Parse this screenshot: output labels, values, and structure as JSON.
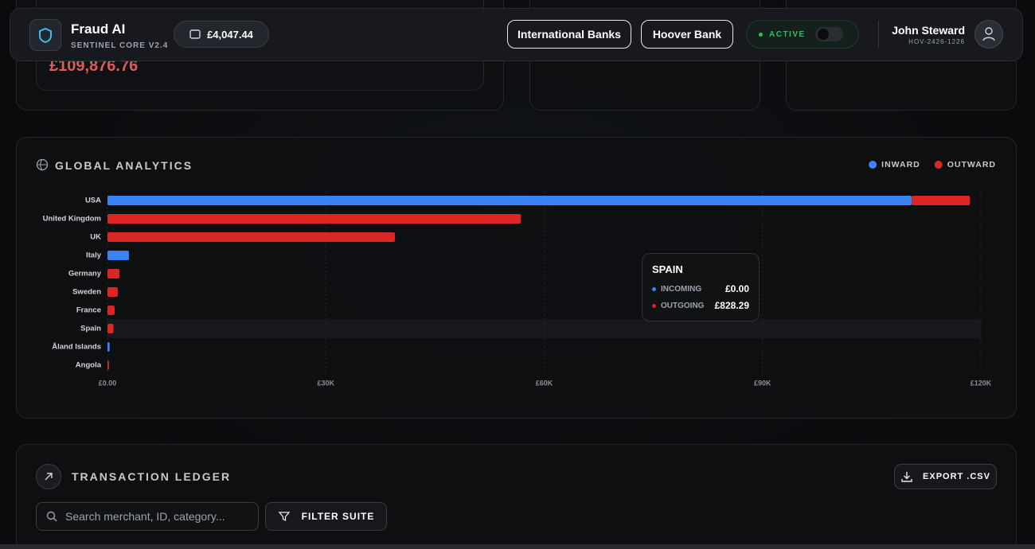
{
  "header": {
    "brand": "Fraud AI",
    "subtitle": "SENTINEL CORE V2.4",
    "balance": "£4,047.44",
    "banks": [
      "International Banks",
      "Hoover Bank"
    ],
    "status": "ACTIVE",
    "user_name": "John Steward",
    "user_id": "HOV-2426-1226"
  },
  "summary": {
    "amount": "£109,876.76"
  },
  "analytics": {
    "title": "GLOBAL ANALYTICS",
    "tooltip": {
      "title": "SPAIN",
      "rows": [
        {
          "label": "INCOMING",
          "value": "£0.00"
        },
        {
          "label": "OUTGOING",
          "value": "£828.29"
        }
      ]
    }
  },
  "chart_data": {
    "type": "bar",
    "orientation": "horizontal",
    "stacked": true,
    "categories": [
      "USA",
      "United Kingdom",
      "UK",
      "Italy",
      "Germany",
      "Sweden",
      "France",
      "Spain",
      "Åland Islands",
      "Angola"
    ],
    "series": [
      {
        "name": "INWARD",
        "color": "#3b82f6",
        "values": [
          110500,
          0,
          0,
          2950,
          0,
          0,
          0,
          0,
          300,
          0
        ]
      },
      {
        "name": "OUTWARD",
        "color": "#dc2626",
        "values": [
          8000,
          56800,
          39500,
          0,
          1640,
          1420,
          980,
          828.29,
          0,
          200
        ]
      }
    ],
    "xlim": [
      0,
      120000
    ],
    "xticks": [
      {
        "value": 0,
        "label": "£0.00"
      },
      {
        "value": 30000,
        "label": "£30K"
      },
      {
        "value": 60000,
        "label": "£60K"
      },
      {
        "value": 90000,
        "label": "£90K"
      },
      {
        "value": 120000,
        "label": "£120K"
      }
    ],
    "grid": true,
    "legend": "top-right"
  },
  "ledger": {
    "title": "TRANSACTION LEDGER",
    "export": "EXPORT .CSV",
    "search_placeholder": "Search merchant, ID, category...",
    "filter": "FILTER SUITE"
  }
}
